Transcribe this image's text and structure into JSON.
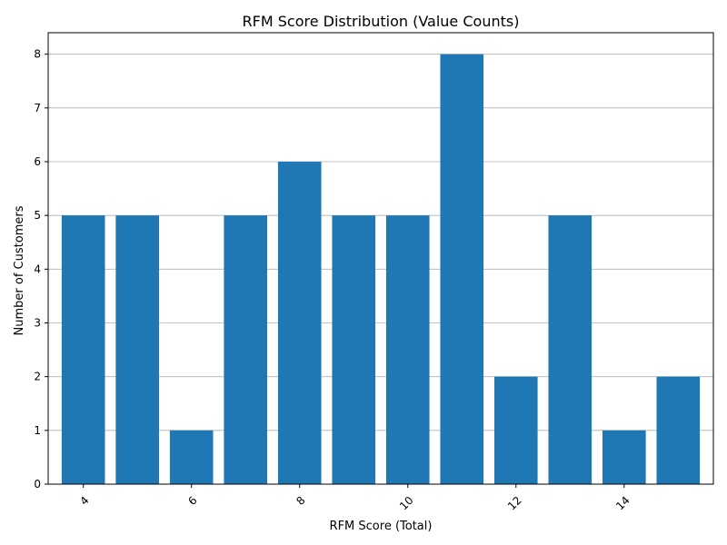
{
  "chart_data": {
    "type": "bar",
    "title": "RFM Score Distribution (Value Counts)",
    "xlabel": "RFM Score (Total)",
    "ylabel": "Number of Customers",
    "x": [
      4,
      5,
      6,
      7,
      8,
      9,
      10,
      11,
      12,
      13,
      14,
      15
    ],
    "values": [
      5,
      5,
      1,
      5,
      6,
      5,
      5,
      8,
      2,
      5,
      1,
      2
    ],
    "xticks": [
      4,
      6,
      8,
      10,
      12,
      14
    ],
    "yticks": [
      0,
      1,
      2,
      3,
      4,
      5,
      6,
      7,
      8
    ],
    "xlim": [
      3.35,
      15.65
    ],
    "ylim": [
      0,
      8.4
    ],
    "grid": "y",
    "bar_color": "#1f77b4",
    "grid_color": "#b0b0b0"
  }
}
